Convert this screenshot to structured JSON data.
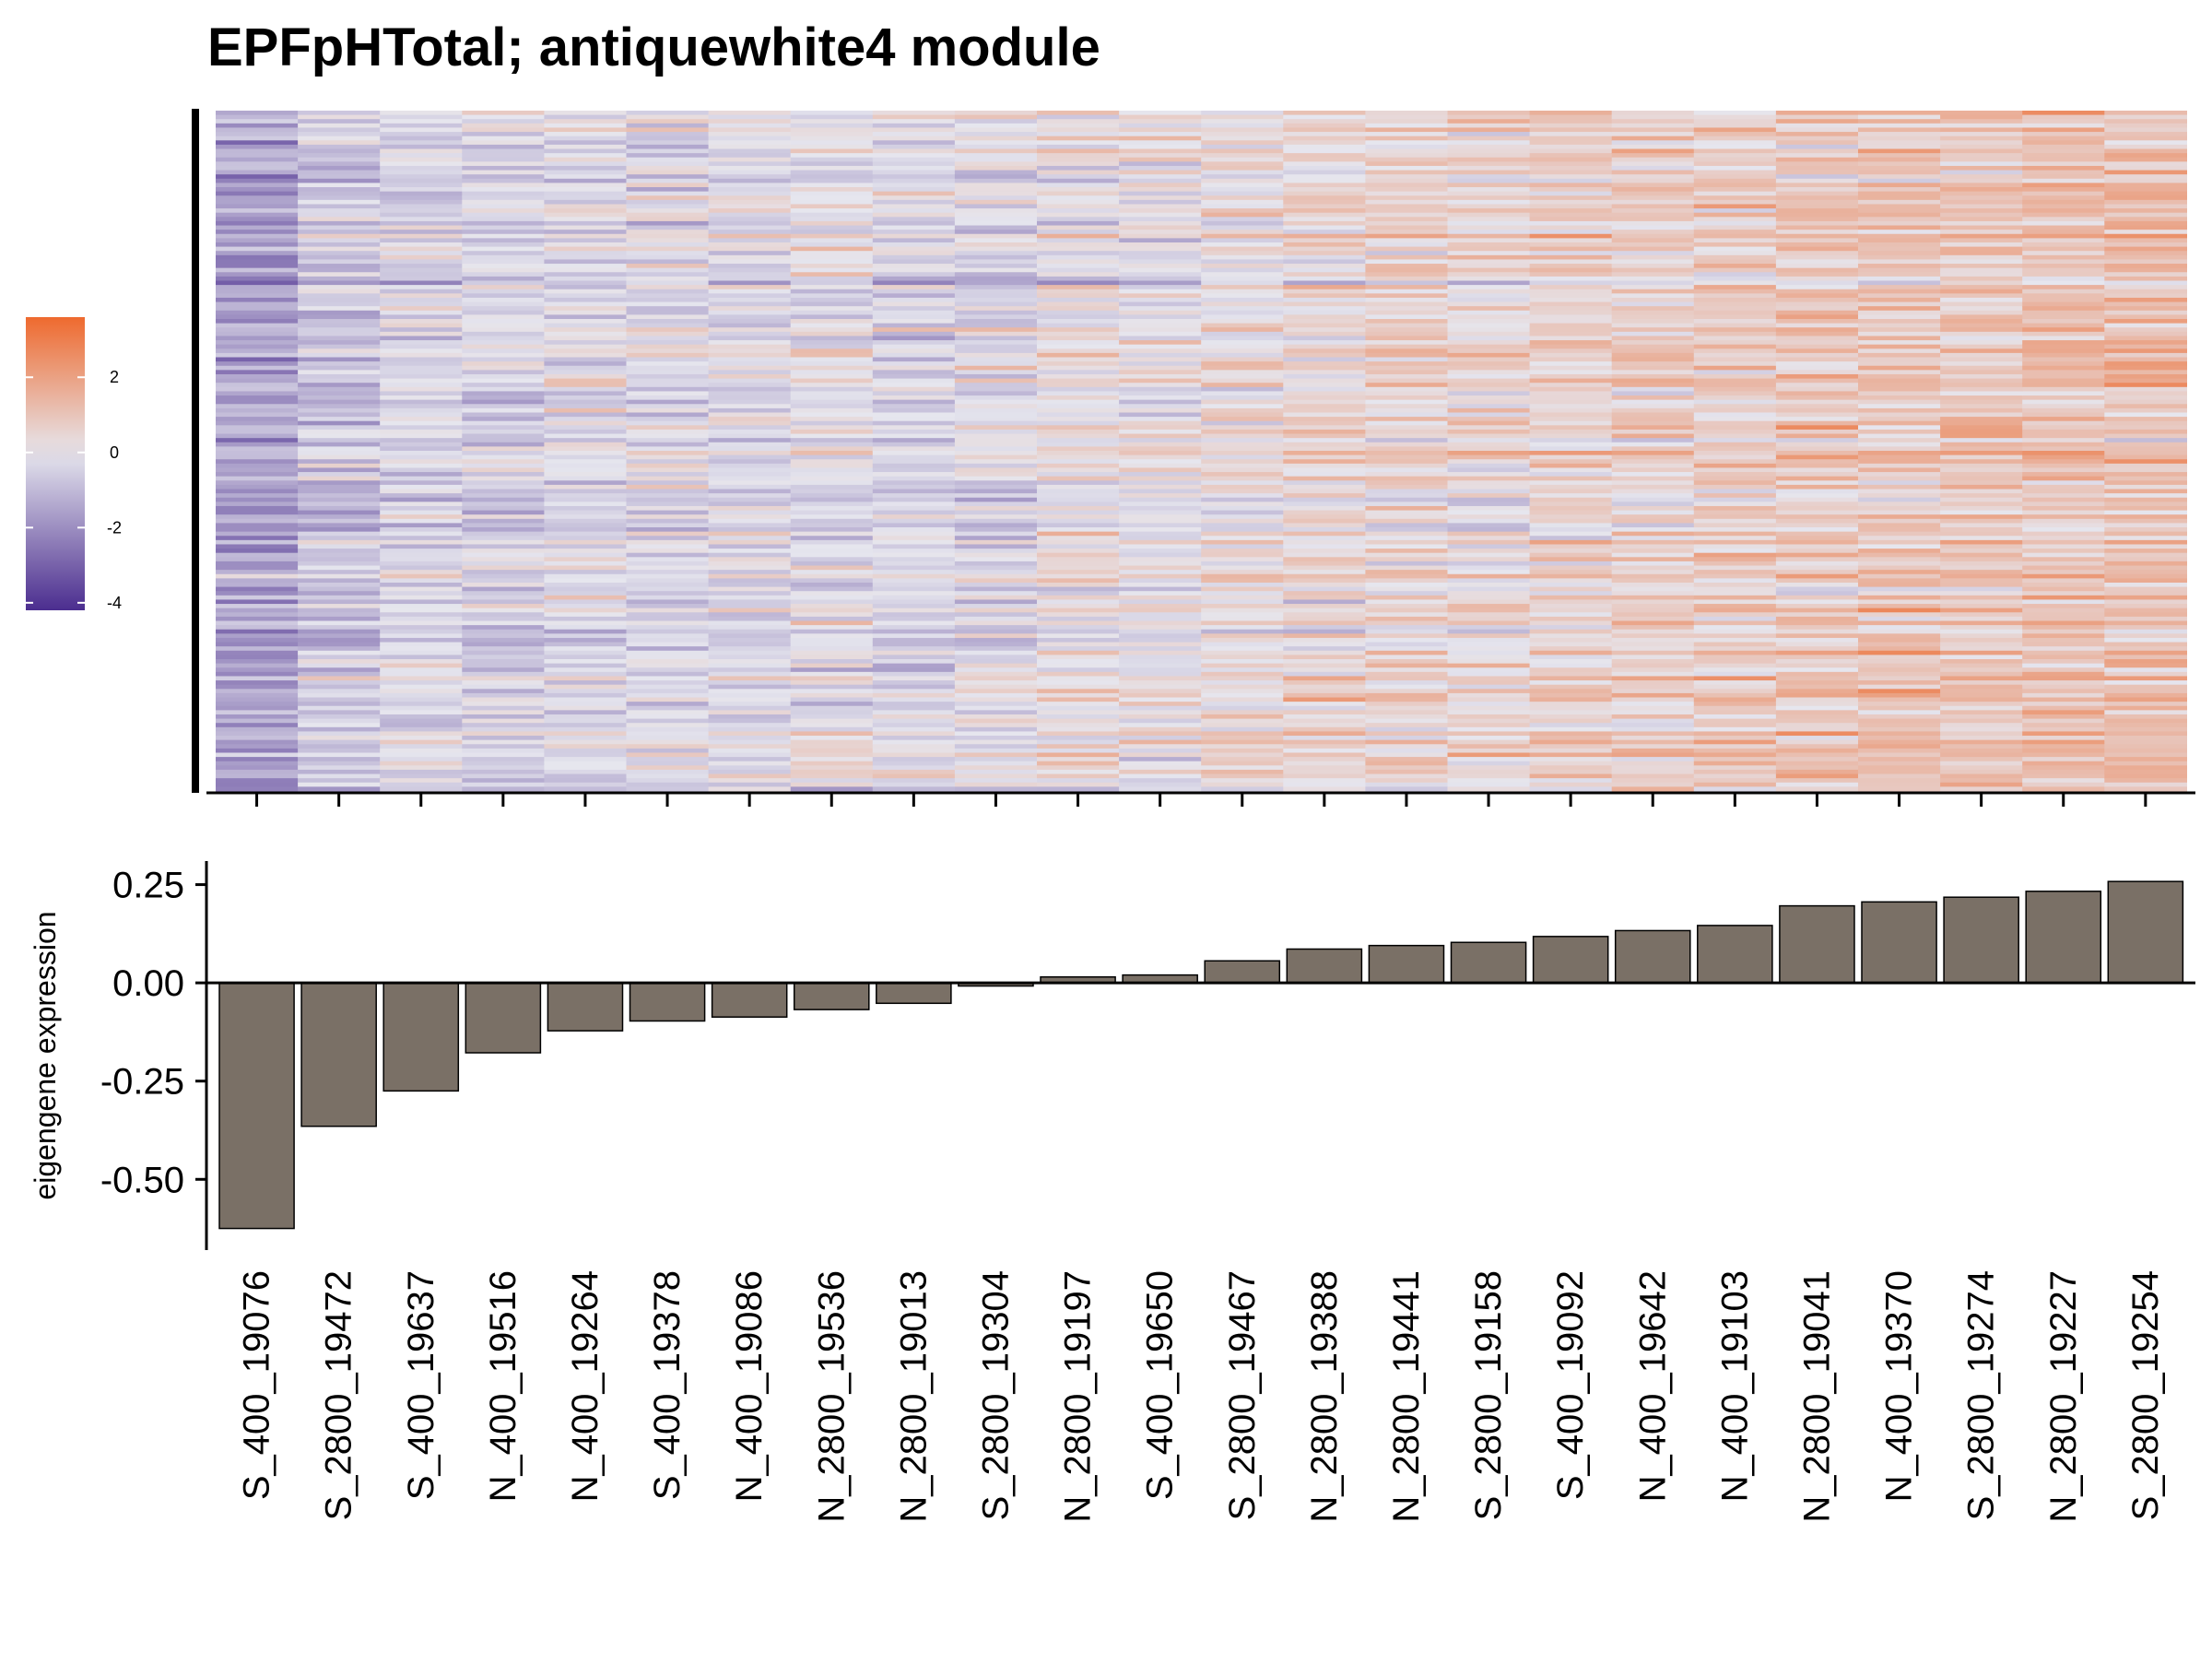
{
  "chart_data": [
    {
      "type": "heatmap",
      "title": "EPFpHTotal; antiquewhite4 module",
      "legend": {
        "ticks": [
          "2",
          "0",
          "-2",
          "-4"
        ],
        "tick_values": [
          2,
          0,
          -2,
          -4
        ],
        "range": [
          -4.2,
          3.6
        ],
        "colors": {
          "low": "#4b2d8f",
          "mid": "#e6e6ee",
          "high": "#ee6a2e"
        },
        "position": "left"
      },
      "columns": [
        "S_400_19076",
        "S_2800_19472",
        "S_400_19637",
        "N_400_19516",
        "N_400_19264",
        "S_400_19378",
        "N_400_19086",
        "N_2800_19536",
        "N_2800_19013",
        "S_2800_19304",
        "N_2800_19197",
        "S_400_19650",
        "S_2800_19467",
        "N_2800_19388",
        "N_2800_19441",
        "S_2800_19158",
        "S_400_19092",
        "N_400_19642",
        "N_400_19103",
        "N_2800_19041",
        "N_400_19370",
        "S_2800_19274",
        "N_2800_19227",
        "S_2800_19254"
      ],
      "column_mean_z": [
        -2.2,
        -1.1,
        -0.6,
        -0.7,
        -0.4,
        -0.3,
        -0.4,
        -0.1,
        -0.5,
        -0.2,
        0.1,
        0.0,
        0.4,
        0.6,
        0.8,
        0.5,
        0.9,
        0.9,
        1.0,
        1.2,
        1.3,
        1.4,
        1.5,
        1.6
      ],
      "n_rows": 160
    },
    {
      "type": "bar",
      "categories": [
        "S_400_19076",
        "S_2800_19472",
        "S_400_19637",
        "N_400_19516",
        "N_400_19264",
        "S_400_19378",
        "N_400_19086",
        "N_2800_19536",
        "N_2800_19013",
        "S_2800_19304",
        "N_2800_19197",
        "S_400_19650",
        "S_2800_19467",
        "N_2800_19388",
        "N_2800_19441",
        "S_2800_19158",
        "S_400_19092",
        "N_400_19642",
        "N_400_19103",
        "N_2800_19041",
        "N_400_19370",
        "S_2800_19274",
        "N_2800_19227",
        "S_2800_19254"
      ],
      "values": [
        -0.625,
        -0.365,
        -0.275,
        -0.178,
        -0.122,
        -0.097,
        -0.087,
        -0.068,
        -0.052,
        -0.008,
        0.015,
        0.02,
        0.056,
        0.086,
        0.095,
        0.103,
        0.118,
        0.133,
        0.146,
        0.196,
        0.206,
        0.218,
        0.233,
        0.258
      ],
      "ylabel": "eigengene expression",
      "xlabel": "",
      "ylim": [
        -0.68,
        0.31
      ],
      "yticks": [
        0.25,
        0.0,
        -0.25,
        -0.5
      ],
      "ytick_labels": [
        "0.25",
        "0.00",
        "-0.25",
        "-0.50"
      ],
      "bar_color": "#7a7066",
      "grid": false
    }
  ]
}
